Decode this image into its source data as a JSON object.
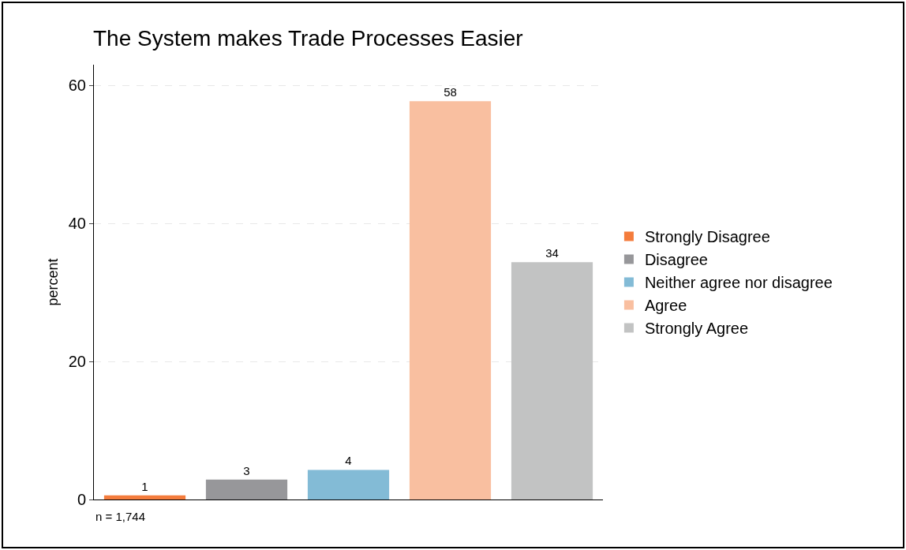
{
  "chart_data": {
    "type": "bar",
    "title": "The System makes Trade Processes Easier",
    "ylabel": "percent",
    "categories": [
      null,
      null,
      null,
      null,
      null
    ],
    "series": [
      {
        "name": "Strongly Disagree",
        "color": "#f47c3c",
        "values": [
          0.6,
          null,
          null,
          null,
          null
        ],
        "value_labels": [
          "1",
          null,
          null,
          null,
          null
        ]
      },
      {
        "name": "Disagree",
        "color": "#97979a",
        "values": [
          null,
          2.9,
          null,
          null,
          null
        ],
        "value_labels": [
          null,
          "3",
          null,
          null,
          null
        ]
      },
      {
        "name": "Neither agree nor disagree",
        "color": "#83bbd6",
        "values": [
          null,
          null,
          4.3,
          null,
          null
        ],
        "value_labels": [
          null,
          null,
          "4",
          null,
          null
        ]
      },
      {
        "name": "Agree",
        "color": "#f9bfa0",
        "values": [
          null,
          null,
          null,
          57.7,
          null
        ],
        "value_labels": [
          null,
          null,
          null,
          "58",
          null
        ]
      },
      {
        "name": "Strongly Agree",
        "color": "#c2c3c3",
        "values": [
          null,
          null,
          null,
          null,
          34.4
        ],
        "value_labels": [
          null,
          null,
          null,
          null,
          "34"
        ]
      }
    ],
    "ylim": [
      0,
      63
    ],
    "yticks": [
      0,
      20,
      40,
      60
    ],
    "grid": "y",
    "legend": "right",
    "annotations": [
      "n = 1,744"
    ]
  }
}
